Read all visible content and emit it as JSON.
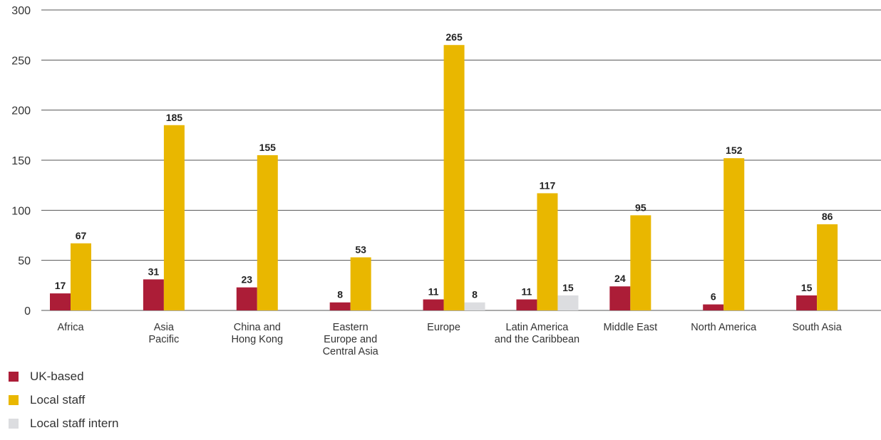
{
  "chart_data": {
    "type": "bar",
    "title": "",
    "xlabel": "",
    "ylabel": "",
    "ylim": [
      0,
      300
    ],
    "yticks": [
      0,
      50,
      100,
      150,
      200,
      250,
      300
    ],
    "grid": true,
    "legend_position": "bottom-left",
    "categories": [
      [
        "Africa"
      ],
      [
        "Asia",
        "Pacific"
      ],
      [
        "China and",
        "Hong Kong"
      ],
      [
        "Eastern",
        "Europe and",
        "Central Asia"
      ],
      [
        "Europe"
      ],
      [
        "Latin America",
        "and the Caribbean"
      ],
      [
        "Middle East"
      ],
      [
        "North America"
      ],
      [
        "South Asia"
      ]
    ],
    "series": [
      {
        "name": "UK-based",
        "color": "#ac1d37",
        "values": [
          17,
          31,
          23,
          8,
          11,
          11,
          24,
          6,
          15
        ]
      },
      {
        "name": "Local staff",
        "color": "#e9b700",
        "values": [
          67,
          185,
          155,
          53,
          265,
          117,
          95,
          152,
          86
        ]
      },
      {
        "name": "Local staff intern",
        "color": "#dcdde0",
        "values": [
          null,
          null,
          null,
          null,
          8,
          15,
          null,
          null,
          null
        ]
      }
    ]
  },
  "legend": [
    {
      "label": "UK-based",
      "color": "#ac1d37"
    },
    {
      "label": "Local staff",
      "color": "#e9b700"
    },
    {
      "label": "Local staff intern",
      "color": "#dcdde0"
    }
  ]
}
